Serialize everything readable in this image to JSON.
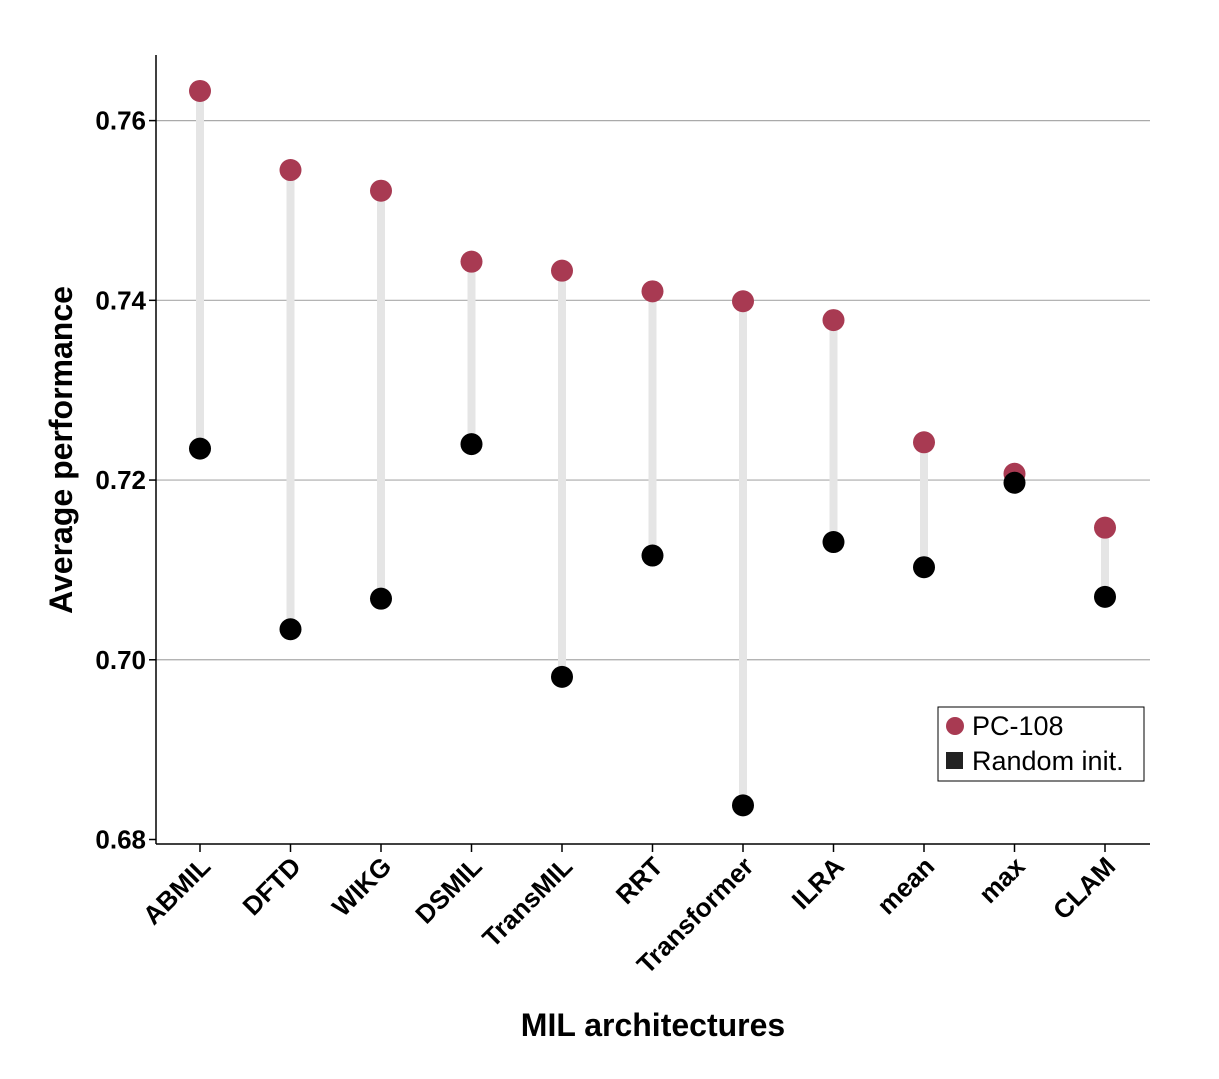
{
  "chart_data": {
    "type": "scatter",
    "subtype": "dumbbell",
    "title": "",
    "xlabel": "MIL architectures",
    "ylabel": "Average performance",
    "categories": [
      "ABMIL",
      "DFTD",
      "WIKG",
      "DSMIL",
      "TransMIL",
      "RRT",
      "Transformer",
      "ILRA",
      "mean",
      "max",
      "CLAM"
    ],
    "series": [
      {
        "name": "PC-108",
        "color": "#a83a52",
        "marker": "circle",
        "values": [
          0.7633,
          0.7545,
          0.7522,
          0.7443,
          0.7433,
          0.741,
          0.7399,
          0.7378,
          0.7242,
          0.7207,
          0.7147
        ]
      },
      {
        "name": "Random init.",
        "color": "#000000",
        "marker": "circle",
        "values": [
          0.7235,
          0.7034,
          0.7068,
          0.724,
          0.6981,
          0.7116,
          0.6838,
          0.7131,
          0.7103,
          0.7197,
          0.707
        ]
      }
    ],
    "yticks": [
      "0.68",
      "0.70",
      "0.72",
      "0.74",
      "0.76"
    ],
    "ytick_values": [
      0.68,
      0.7,
      0.72,
      0.74,
      0.76
    ],
    "ylim": [
      0.6795,
      0.7673
    ],
    "grid": "horizontal",
    "connector_color": "#e5e5e5",
    "legend": {
      "position": "bottom-right",
      "items": [
        {
          "label": "PC-108",
          "color": "#a83a52",
          "marker": "circle"
        },
        {
          "label": "Random init.",
          "color": "#222222",
          "marker": "square"
        }
      ]
    }
  }
}
